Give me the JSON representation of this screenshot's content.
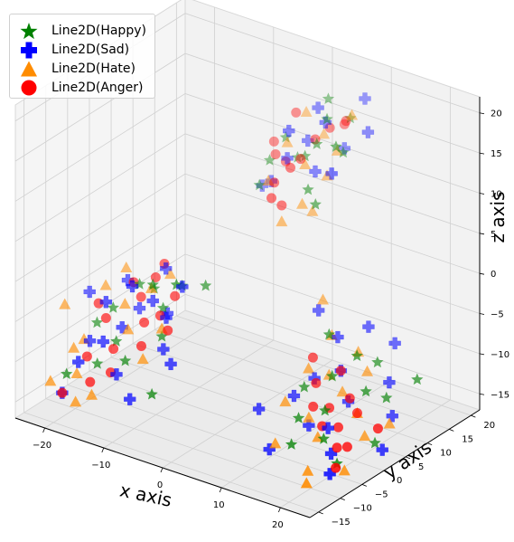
{
  "chart_data": {
    "type": "scatter",
    "projection": "3d",
    "grid": true,
    "legend_position": "top-left",
    "xlabel": "x axis",
    "ylabel": "y axis",
    "zlabel": "z axis",
    "xlim": [
      -25,
      25
    ],
    "ylim": [
      -17,
      22
    ],
    "zlim": [
      -17,
      22
    ],
    "xticks": [
      "−20",
      "−10",
      "0",
      "10",
      "20"
    ],
    "yticks": [
      "−15",
      "−10",
      "−5",
      "0",
      "5",
      "10",
      "15",
      "20"
    ],
    "zticks": [
      "−15",
      "−10",
      "−5",
      "0",
      "5",
      "10",
      "15",
      "20"
    ],
    "series": [
      {
        "name": "Line2D(Happy)",
        "marker": "star",
        "color": "#008000",
        "points": [
          [
            6,
            18,
            16
          ],
          [
            3,
            17,
            18
          ],
          [
            5,
            14,
            17
          ],
          [
            4,
            13,
            14
          ],
          [
            7,
            15,
            13
          ],
          [
            8,
            12,
            15
          ],
          [
            2,
            13,
            12
          ],
          [
            0,
            14,
            11
          ],
          [
            -2,
            14,
            13
          ],
          [
            4,
            11,
            9
          ],
          [
            6,
            10,
            8
          ],
          [
            -4,
            13,
            10
          ],
          [
            -5,
            12,
            7
          ],
          [
            -15,
            -2,
            -3
          ],
          [
            -18,
            -4,
            -6
          ],
          [
            -12,
            -3,
            -2
          ],
          [
            -20,
            -5,
            -8
          ],
          [
            -14,
            0,
            -4
          ],
          [
            -10,
            1,
            -3
          ],
          [
            -16,
            -6,
            -9
          ],
          [
            -11,
            -2,
            -5
          ],
          [
            -8,
            -3,
            -1
          ],
          [
            -13,
            -8,
            -10
          ],
          [
            -17,
            -9,
            -11
          ],
          [
            -9,
            -5,
            -7
          ],
          [
            -20,
            -12,
            -12
          ],
          [
            -6,
            1,
            -2
          ],
          [
            -7,
            -10,
            -12
          ],
          [
            12,
            5,
            -5
          ],
          [
            14,
            3,
            -9
          ],
          [
            16,
            6,
            -7
          ],
          [
            18,
            8,
            -8
          ],
          [
            10,
            2,
            -11
          ],
          [
            12,
            -2,
            -13
          ],
          [
            15,
            0,
            -12
          ],
          [
            19,
            4,
            -10
          ],
          [
            21,
            6,
            -11
          ],
          [
            17,
            -3,
            -14
          ],
          [
            22,
            2,
            -15
          ],
          [
            13,
            -5,
            -15
          ],
          [
            20,
            -4,
            -16
          ],
          [
            24,
            9,
            -9
          ]
        ]
      },
      {
        "name": "Line2D(Sad)",
        "marker": "plus",
        "color": "#0000ff",
        "points": [
          [
            7,
            20,
            18
          ],
          [
            9,
            18,
            15
          ],
          [
            2,
            16,
            17
          ],
          [
            5,
            18,
            12
          ],
          [
            1,
            15,
            13
          ],
          [
            -1,
            13,
            11
          ],
          [
            3,
            14,
            10
          ],
          [
            8,
            11,
            12
          ],
          [
            -3,
            12,
            8
          ],
          [
            -6,
            14,
            6
          ],
          [
            4,
            15,
            16
          ],
          [
            0,
            12,
            15
          ],
          [
            -22,
            -4,
            -5
          ],
          [
            -17,
            -2,
            -3
          ],
          [
            -15,
            -6,
            -7
          ],
          [
            -12,
            -3,
            -4
          ],
          [
            -19,
            -8,
            -9
          ],
          [
            -14,
            -5,
            -2
          ],
          [
            -11,
            -1,
            -6
          ],
          [
            -16,
            -9,
            -8
          ],
          [
            -9,
            -4,
            -5
          ],
          [
            -13,
            -10,
            -11
          ],
          [
            -18,
            -12,
            -10
          ],
          [
            -8,
            -6,
            -8
          ],
          [
            -10,
            -11,
            -13
          ],
          [
            -7,
            -3,
            -1
          ],
          [
            -20,
            -13,
            -14
          ],
          [
            -6,
            -7,
            -9
          ],
          [
            -12,
            0,
            -1
          ],
          [
            -15,
            -2,
            -6
          ],
          [
            -17,
            -7,
            -4
          ],
          [
            8,
            8,
            -4
          ],
          [
            12,
            7,
            -6
          ],
          [
            15,
            10,
            -5
          ],
          [
            18,
            12,
            -7
          ],
          [
            11,
            3,
            -10
          ],
          [
            14,
            5,
            -9
          ],
          [
            9,
            1,
            -12
          ],
          [
            16,
            4,
            -12
          ],
          [
            20,
            8,
            -10
          ],
          [
            13,
            -1,
            -14
          ],
          [
            17,
            -2,
            -13
          ],
          [
            22,
            6,
            -13
          ],
          [
            19,
            -4,
            -15
          ],
          [
            24,
            1,
            -15
          ],
          [
            21,
            -7,
            -16
          ],
          [
            10,
            -6,
            -16
          ],
          [
            6,
            -3,
            -13
          ]
        ]
      },
      {
        "name": "Line2D(Hate)",
        "marker": "triangle",
        "color": "#ff8c00",
        "points": [
          [
            0,
            16,
            16
          ],
          [
            3,
            16,
            14
          ],
          [
            6,
            15,
            13
          ],
          [
            -1,
            13,
            13
          ],
          [
            2,
            13,
            11
          ],
          [
            5,
            14,
            10
          ],
          [
            1,
            9,
            5
          ],
          [
            3,
            11,
            7
          ],
          [
            -2,
            10,
            9
          ],
          [
            4,
            12,
            6
          ],
          [
            7,
            17,
            17
          ],
          [
            -24,
            -7,
            -6
          ],
          [
            -20,
            -3,
            -4
          ],
          [
            -18,
            -1,
            -2
          ],
          [
            -21,
            -9,
            -10
          ],
          [
            -16,
            -4,
            -5
          ],
          [
            -14,
            -6,
            -7
          ],
          [
            -19,
            -11,
            -12
          ],
          [
            -13,
            -2,
            -3
          ],
          [
            -22,
            -13,
            -13
          ],
          [
            -10,
            -8,
            -9
          ],
          [
            -17,
            -14,
            -14
          ],
          [
            -12,
            1,
            -2
          ],
          [
            -9,
            -5,
            -6
          ],
          [
            -20,
            -8,
            -9
          ],
          [
            -15,
            -13,
            -13
          ],
          [
            8,
            9,
            -3
          ],
          [
            11,
            7,
            -6
          ],
          [
            14,
            9,
            -8
          ],
          [
            10,
            3,
            -9
          ],
          [
            12,
            5,
            -10
          ],
          [
            15,
            4,
            -11
          ],
          [
            17,
            7,
            -9
          ],
          [
            13,
            -1,
            -13
          ],
          [
            19,
            2,
            -12
          ],
          [
            16,
            -3,
            -14
          ],
          [
            21,
            1,
            -14
          ],
          [
            11,
            -6,
            -15
          ],
          [
            18,
            -8,
            -16
          ],
          [
            22,
            -5,
            -16
          ],
          [
            9,
            -1,
            -12
          ],
          [
            20,
            -11,
            -16
          ],
          [
            23,
            4,
            -13
          ]
        ]
      },
      {
        "name": "Line2D(Anger)",
        "marker": "circle",
        "color": "#ff0000",
        "points": [
          [
            6,
            17,
            16
          ],
          [
            4,
            16,
            15
          ],
          [
            3,
            14,
            14
          ],
          [
            2,
            12,
            12
          ],
          [
            1,
            11,
            11
          ],
          [
            -4,
            14,
            12
          ],
          [
            -2,
            14,
            10
          ],
          [
            0,
            8,
            8
          ],
          [
            -1,
            10,
            9
          ],
          [
            -3,
            13,
            11
          ],
          [
            1,
            9,
            7
          ],
          [
            -1,
            15,
            16
          ],
          [
            5,
            18,
            15
          ],
          [
            -19,
            -6,
            -5
          ],
          [
            -16,
            -2,
            -3
          ],
          [
            -14,
            -3,
            -4
          ],
          [
            -17,
            -7,
            -6
          ],
          [
            -13,
            -1,
            -2
          ],
          [
            -12,
            -5,
            -6
          ],
          [
            -15,
            -8,
            -9
          ],
          [
            -10,
            -4,
            -5
          ],
          [
            -18,
            -10,
            -10
          ],
          [
            -11,
            -7,
            -8
          ],
          [
            -14,
            -10,
            -11
          ],
          [
            -9,
            -2,
            -3
          ],
          [
            -13,
            1,
            -1
          ],
          [
            -16,
            -12,
            -12
          ],
          [
            -8,
            -5,
            -6
          ],
          [
            -20,
            -13,
            -14
          ],
          [
            10,
            4,
            -8
          ],
          [
            12,
            2,
            -10
          ],
          [
            14,
            5,
            -9
          ],
          [
            13,
            0,
            -12
          ],
          [
            15,
            1,
            -12
          ],
          [
            17,
            3,
            -11
          ],
          [
            16,
            -2,
            -13
          ],
          [
            18,
            -1,
            -13
          ],
          [
            19,
            2,
            -12
          ],
          [
            20,
            -4,
            -14
          ],
          [
            21,
            -3,
            -14
          ],
          [
            22,
            -7,
            -15
          ],
          [
            24,
            0,
            -12
          ]
        ]
      }
    ]
  }
}
